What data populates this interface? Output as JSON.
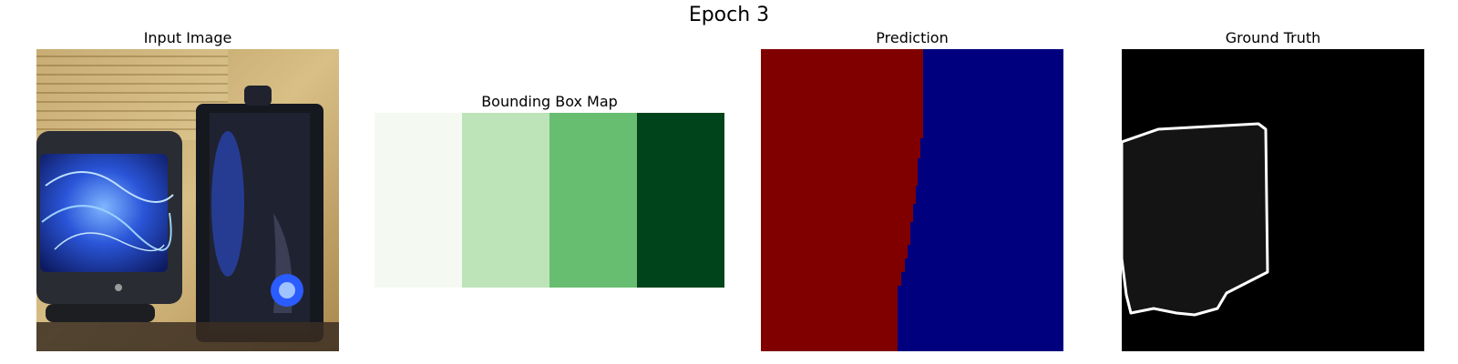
{
  "figure": {
    "title": "Epoch 3"
  },
  "panels": {
    "input": {
      "title": "Input Image"
    },
    "bbox": {
      "title": "Bounding Box Map",
      "colors": [
        "#f4faf2",
        "#bde4b8",
        "#67be70",
        "#00441b"
      ]
    },
    "prediction": {
      "title": "Prediction",
      "left_color": "#800000",
      "right_color": "#00007f"
    },
    "ground_truth": {
      "title": "Ground Truth",
      "background_color": "#000000",
      "region_color": "#141414",
      "outline_color": "#ffffff"
    }
  }
}
